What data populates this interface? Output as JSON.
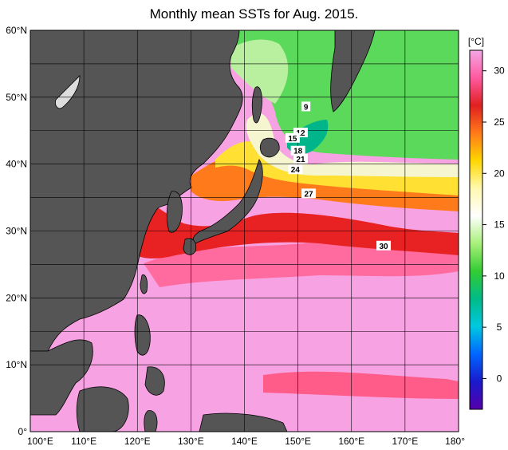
{
  "title": "Monthly mean SSTs for Aug. 2015.",
  "lat_labels": [
    "60°N",
    "50°N",
    "40°N",
    "30°N",
    "20°N",
    "10°N",
    "0°"
  ],
  "lon_labels": [
    "100°E",
    "110°E",
    "120°E",
    "130°E",
    "140°E",
    "150°E",
    "160°E",
    "170°E",
    "180°"
  ],
  "colorbar": {
    "unit": "[°C]",
    "ticks": [
      "30",
      "25",
      "20",
      "15",
      "10",
      "5",
      "0"
    ],
    "colors": [
      "#f4a6e6",
      "#ff5aa0",
      "#e02020",
      "#ff7a1a",
      "#ffd700",
      "#fff9b0",
      "#ffffff",
      "#a8f07a",
      "#33cc33",
      "#00bb88",
      "#00c8e0",
      "#0066ff",
      "#1a1acc",
      "#5500aa"
    ]
  },
  "isotherm_labels": [
    {
      "text": "9",
      "lon": 151.5,
      "lat": 48.5
    },
    {
      "text": "12",
      "lon": 150.5,
      "lat": 44.6
    },
    {
      "text": "15",
      "lon": 149.0,
      "lat": 43.8
    },
    {
      "text": "18",
      "lon": 150.0,
      "lat": 41.9
    },
    {
      "text": "21",
      "lon": 150.5,
      "lat": 40.7
    },
    {
      "text": "24",
      "lon": 149.5,
      "lat": 39.1
    },
    {
      "text": "27",
      "lon": 152.0,
      "lat": 35.5
    },
    {
      "text": "30",
      "lon": 166.0,
      "lat": 27.7
    }
  ],
  "colors": {
    "land": "#555555",
    "coast": "#000000",
    "grid": "#000000",
    "warm_pool": "#f7a3e3",
    "hot": "#ff4d6d",
    "kuroshio": "#ee2222",
    "subtropical": "#ff6a3d",
    "yellow": "#ffe033",
    "cool": "#f3f3cc",
    "green": "#4fd94f",
    "teal": "#00b58a"
  }
}
